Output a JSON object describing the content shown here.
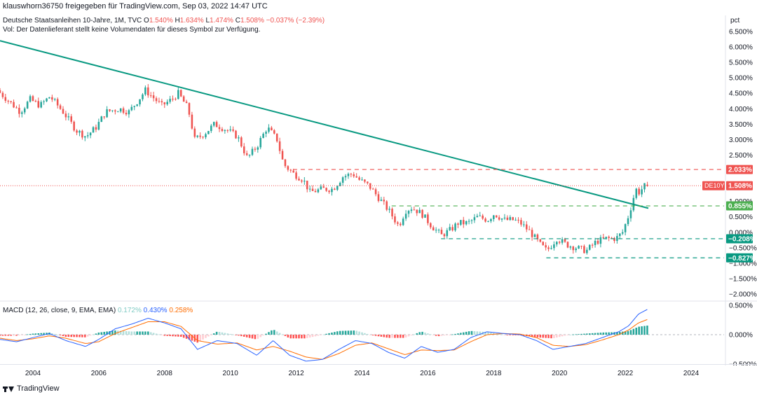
{
  "header": {
    "share_text": "klauswhorn36750 freigegeben für TradingView.com, Sep 03, 2022 14:47 UTC"
  },
  "legend": {
    "symbol_line": "Deutsche Staatsanleihen 10-Jahre, 1M, TVC",
    "open_key": "O",
    "open_val": "1.540%",
    "high_key": "H",
    "high_val": "1.634%",
    "low_key": "L",
    "low_val": "1.474%",
    "close_key": "C",
    "close_val": "1.508%",
    "change": "−0.037% (−2.39%)",
    "volume_note": "Vol: Der Datenlieferant stellt keine Volumendaten für dieses Symbol zur Verfügung."
  },
  "price_axis": {
    "unit": "pct",
    "ticks": [
      "6.500%",
      "6.000%",
      "5.500%",
      "5.000%",
      "4.500%",
      "4.000%",
      "3.500%",
      "3.000%",
      "2.500%",
      "2.000%",
      "1.500%",
      "1.000%",
      "0.500%",
      "0.000%",
      "−0.500%",
      "−1.000%",
      "−1.500%",
      "−2.000%"
    ]
  },
  "badges": [
    {
      "label": "2.033%",
      "value": 2.033,
      "color": "#ef5350"
    },
    {
      "label": "1.508%",
      "value": 1.508,
      "color": "#ef5350",
      "symbol": "DE10Y"
    },
    {
      "label": "0.855%",
      "value": 0.855,
      "color": "#4caf50"
    },
    {
      "label": "−0.208%",
      "value": -0.208,
      "color": "#089981"
    },
    {
      "label": "−0.827%",
      "value": -0.827,
      "color": "#089981"
    }
  ],
  "macd": {
    "title": "MACD (12, 26, close, 9, EMA, EMA)",
    "hist_val": "0.172%",
    "macd_val": "0.430%",
    "signal_val": "0.258%",
    "ticks": [
      "0.500%",
      "0.000%",
      "−0.500%"
    ],
    "colors": {
      "hist": "#26a69a",
      "macd": "#2962ff",
      "signal": "#ff6d00"
    }
  },
  "x_axis": {
    "ticks": [
      "2004",
      "2006",
      "2008",
      "2010",
      "2012",
      "2014",
      "2016",
      "2018",
      "2020",
      "2022",
      "2024"
    ]
  },
  "footer": {
    "brand": "TradingView"
  },
  "chart_data": {
    "type": "candlestick",
    "title": "Deutsche Staatsanleihen 10-Jahre, 1M, TVC",
    "ylabel": "pct",
    "ylim": [
      -2.2,
      6.6
    ],
    "x_range": [
      2003.0,
      2025.0
    ],
    "colors": {
      "up": "#26a69a",
      "down": "#ef5350",
      "trendline": "#089981"
    },
    "price_path": [
      [
        2003.0,
        4.6
      ],
      [
        2003.4,
        4.2
      ],
      [
        2003.7,
        3.9
      ],
      [
        2004.0,
        4.3
      ],
      [
        2004.3,
        4.1
      ],
      [
        2004.6,
        4.4
      ],
      [
        2005.0,
        3.9
      ],
      [
        2005.4,
        3.3
      ],
      [
        2005.7,
        3.1
      ],
      [
        2006.0,
        3.4
      ],
      [
        2006.3,
        3.9
      ],
      [
        2006.7,
        4.0
      ],
      [
        2007.0,
        3.9
      ],
      [
        2007.3,
        4.3
      ],
      [
        2007.5,
        4.6
      ],
      [
        2007.8,
        4.3
      ],
      [
        2008.0,
        4.1
      ],
      [
        2008.3,
        4.3
      ],
      [
        2008.5,
        4.5
      ],
      [
        2008.8,
        4.0
      ],
      [
        2009.0,
        3.0
      ],
      [
        2009.3,
        3.2
      ],
      [
        2009.6,
        3.5
      ],
      [
        2010.0,
        3.3
      ],
      [
        2010.3,
        3.1
      ],
      [
        2010.6,
        2.4
      ],
      [
        2010.9,
        2.8
      ],
      [
        2011.2,
        3.4
      ],
      [
        2011.5,
        3.0
      ],
      [
        2011.7,
        2.2
      ],
      [
        2012.0,
        1.9
      ],
      [
        2012.3,
        1.7
      ],
      [
        2012.5,
        1.3
      ],
      [
        2012.9,
        1.4
      ],
      [
        2013.2,
        1.4
      ],
      [
        2013.5,
        1.8
      ],
      [
        2013.8,
        1.9
      ],
      [
        2014.0,
        1.7
      ],
      [
        2014.3,
        1.5
      ],
      [
        2014.6,
        1.1
      ],
      [
        2014.9,
        0.7
      ],
      [
        2015.2,
        0.2
      ],
      [
        2015.4,
        0.7
      ],
      [
        2015.6,
        0.8
      ],
      [
        2015.9,
        0.6
      ],
      [
        2016.2,
        0.2
      ],
      [
        2016.5,
        -0.1
      ],
      [
        2016.8,
        0.1
      ],
      [
        2017.0,
        0.3
      ],
      [
        2017.3,
        0.3
      ],
      [
        2017.6,
        0.5
      ],
      [
        2017.9,
        0.4
      ],
      [
        2018.1,
        0.6
      ],
      [
        2018.4,
        0.4
      ],
      [
        2018.7,
        0.4
      ],
      [
        2018.9,
        0.3
      ],
      [
        2019.2,
        0.0
      ],
      [
        2019.5,
        -0.4
      ],
      [
        2019.7,
        -0.6
      ],
      [
        2020.0,
        -0.2
      ],
      [
        2020.3,
        -0.4
      ],
      [
        2020.6,
        -0.5
      ],
      [
        2020.9,
        -0.6
      ],
      [
        2021.2,
        -0.3
      ],
      [
        2021.5,
        -0.2
      ],
      [
        2021.8,
        -0.2
      ],
      [
        2022.0,
        0.0
      ],
      [
        2022.2,
        0.6
      ],
      [
        2022.4,
        1.4
      ],
      [
        2022.5,
        1.3
      ],
      [
        2022.67,
        1.5
      ]
    ],
    "last_candle": {
      "open": 1.54,
      "high": 1.634,
      "low": 1.474,
      "close": 1.508,
      "change": -0.037,
      "change_pct": -2.39
    },
    "trendline": {
      "start": [
        2003.0,
        6.2
      ],
      "end": [
        2022.7,
        0.78
      ]
    },
    "horizontal_levels": [
      {
        "value": 2.033,
        "from": 2011.9,
        "color": "#ef5350"
      },
      {
        "value": 0.855,
        "from": 2014.9,
        "color": "#4caf50"
      },
      {
        "value": -0.208,
        "from": 2016.4,
        "color": "#089981"
      },
      {
        "value": -0.827,
        "from": 2019.6,
        "color": "#089981"
      }
    ],
    "current_price_line": {
      "value": 1.508,
      "color": "#ef5350"
    },
    "macd_ylim": [
      -0.5,
      0.5
    ],
    "macd_path": [
      [
        2003.0,
        -0.08
      ],
      [
        2003.5,
        -0.12
      ],
      [
        2004.0,
        -0.05
      ],
      [
        2004.5,
        0.02
      ],
      [
        2005.0,
        -0.1
      ],
      [
        2005.6,
        -0.2
      ],
      [
        2006.0,
        -0.08
      ],
      [
        2006.5,
        0.1
      ],
      [
        2007.0,
        0.18
      ],
      [
        2007.5,
        0.28
      ],
      [
        2008.0,
        0.2
      ],
      [
        2008.5,
        0.1
      ],
      [
        2009.0,
        -0.25
      ],
      [
        2009.6,
        -0.1
      ],
      [
        2010.2,
        -0.15
      ],
      [
        2010.8,
        -0.35
      ],
      [
        2011.3,
        -0.1
      ],
      [
        2011.8,
        -0.35
      ],
      [
        2012.3,
        -0.45
      ],
      [
        2012.8,
        -0.42
      ],
      [
        2013.3,
        -0.25
      ],
      [
        2013.8,
        -0.1
      ],
      [
        2014.3,
        -0.15
      ],
      [
        2014.8,
        -0.3
      ],
      [
        2015.3,
        -0.4
      ],
      [
        2015.8,
        -0.2
      ],
      [
        2016.3,
        -0.3
      ],
      [
        2016.8,
        -0.25
      ],
      [
        2017.3,
        -0.05
      ],
      [
        2017.8,
        0.05
      ],
      [
        2018.3,
        0.02
      ],
      [
        2018.8,
        0.0
      ],
      [
        2019.3,
        -0.1
      ],
      [
        2019.8,
        -0.25
      ],
      [
        2020.3,
        -0.2
      ],
      [
        2020.8,
        -0.15
      ],
      [
        2021.3,
        -0.05
      ],
      [
        2021.8,
        0.05
      ],
      [
        2022.1,
        0.15
      ],
      [
        2022.4,
        0.35
      ],
      [
        2022.67,
        0.43
      ]
    ],
    "signal_path": [
      [
        2003.0,
        -0.06
      ],
      [
        2003.5,
        -0.1
      ],
      [
        2004.0,
        -0.07
      ],
      [
        2004.5,
        -0.02
      ],
      [
        2005.0,
        -0.06
      ],
      [
        2005.6,
        -0.15
      ],
      [
        2006.0,
        -0.12
      ],
      [
        2006.5,
        0.02
      ],
      [
        2007.0,
        0.12
      ],
      [
        2007.5,
        0.22
      ],
      [
        2008.0,
        0.22
      ],
      [
        2008.5,
        0.14
      ],
      [
        2009.0,
        -0.1
      ],
      [
        2009.6,
        -0.16
      ],
      [
        2010.2,
        -0.14
      ],
      [
        2010.8,
        -0.26
      ],
      [
        2011.3,
        -0.2
      ],
      [
        2011.8,
        -0.28
      ],
      [
        2012.3,
        -0.38
      ],
      [
        2012.8,
        -0.42
      ],
      [
        2013.3,
        -0.32
      ],
      [
        2013.8,
        -0.18
      ],
      [
        2014.3,
        -0.14
      ],
      [
        2014.8,
        -0.24
      ],
      [
        2015.3,
        -0.34
      ],
      [
        2015.8,
        -0.26
      ],
      [
        2016.3,
        -0.27
      ],
      [
        2016.8,
        -0.26
      ],
      [
        2017.3,
        -0.12
      ],
      [
        2017.8,
        0.0
      ],
      [
        2018.3,
        0.02
      ],
      [
        2018.8,
        0.01
      ],
      [
        2019.3,
        -0.05
      ],
      [
        2019.8,
        -0.18
      ],
      [
        2020.3,
        -0.2
      ],
      [
        2020.8,
        -0.17
      ],
      [
        2021.3,
        -0.09
      ],
      [
        2021.8,
        0.0
      ],
      [
        2022.1,
        0.08
      ],
      [
        2022.4,
        0.2
      ],
      [
        2022.67,
        0.258
      ]
    ]
  }
}
